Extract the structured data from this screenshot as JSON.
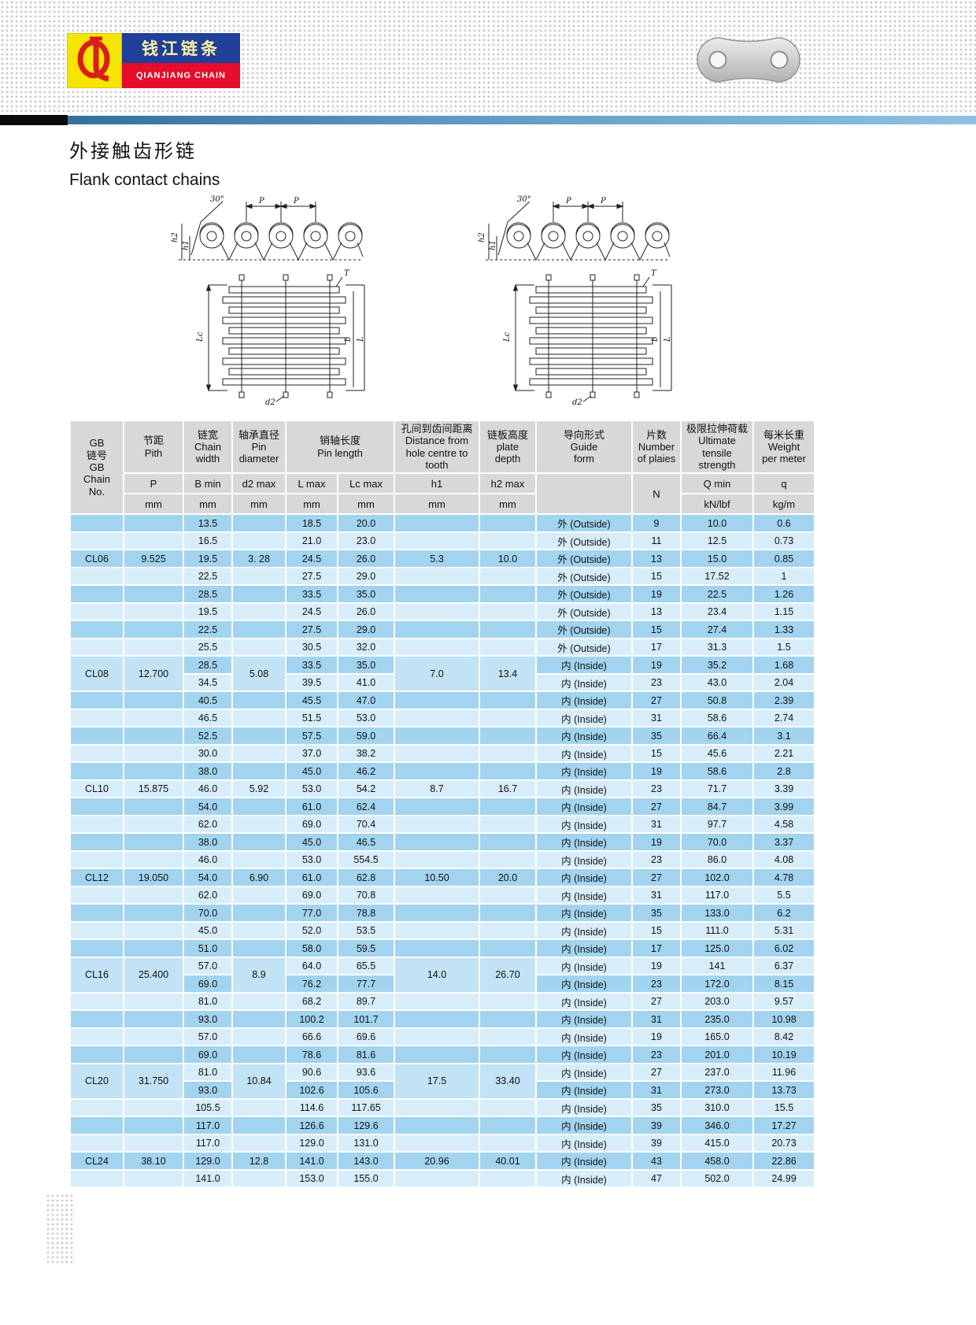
{
  "brand": {
    "monogram": "QL",
    "name_cn": "钱江链条",
    "name_en": "QIANJIANG CHAIN"
  },
  "page": {
    "title_cn": "外接触齿形链",
    "title_en": "Flank contact chains"
  },
  "diagram": {
    "p": "P",
    "angle": "30°",
    "h1": "h1",
    "h2": "h2",
    "lc": "Lc",
    "l": "L",
    "b": "b",
    "t": "T",
    "d2": "d2"
  },
  "table": {
    "head_top": [
      {
        "text": "GB\n链号\nGB\nChain\nNo.",
        "rowspan": 3
      },
      {
        "text": "节距\nPith"
      },
      {
        "text": "链宽\nChain\nwidth"
      },
      {
        "text": "轴承直径\nPin\ndiameter"
      },
      {
        "text": "销轴长度\nPin length",
        "colspan": 2
      },
      {
        "text": "孔间到齿间距离\nDistance from\nhole centre to\ntooth"
      },
      {
        "text": "链板高度\nplate\ndepth"
      },
      {
        "text": "导向形式\nGuide\nform"
      },
      {
        "text": "片数\nNumber\nof plaies"
      },
      {
        "text": "极限拉伸荷载\nUltimate\ntensile\nstrength"
      },
      {
        "text": "每米长重\nWeight\nper meter"
      }
    ],
    "head_sub": [
      {
        "text": "P"
      },
      {
        "text": "B min"
      },
      {
        "text": "d2 max"
      },
      {
        "text": "L max"
      },
      {
        "text": "Lc max"
      },
      {
        "text": "h1"
      },
      {
        "text": "h2 max"
      },
      {
        "text": "",
        "rowspan": 2
      },
      {
        "text": "N",
        "rowspan": 2
      },
      {
        "text": "Q min"
      },
      {
        "text": "q"
      }
    ],
    "head_units": [
      {
        "text": "mm"
      },
      {
        "text": "mm"
      },
      {
        "text": "mm"
      },
      {
        "text": "mm"
      },
      {
        "text": "mm"
      },
      {
        "text": "mm"
      },
      {
        "text": "mm"
      },
      {
        "text": "kN/lbf"
      },
      {
        "text": "kg/m"
      }
    ],
    "sections": [
      {
        "chain_no": "CL06",
        "pitch": "9.525",
        "d2_max": "3. 28",
        "h1": "5.3",
        "h2_max": "10.0",
        "label_row": 2,
        "label_span": 1,
        "rows": [
          {
            "w": "13.5",
            "l": "18.5",
            "lc": "20.0",
            "g": "外 (Outside)",
            "n": "9",
            "qm": "10.0",
            "q": "0.6"
          },
          {
            "w": "16.5",
            "l": "21.0",
            "lc": "23.0",
            "g": "外 (Outside)",
            "n": "11",
            "qm": "12.5",
            "q": "0.73"
          },
          {
            "w": "19.5",
            "l": "24.5",
            "lc": "26.0",
            "g": "外 (Outside)",
            "n": "13",
            "qm": "15.0",
            "q": "0.85"
          },
          {
            "w": "22.5",
            "l": "27.5",
            "lc": "29.0",
            "g": "外 (Outside)",
            "n": "15",
            "qm": "17.52",
            "q": "1"
          },
          {
            "w": "28.5",
            "l": "33.5",
            "lc": "35.0",
            "g": "外 (Outside)",
            "n": "19",
            "qm": "22.5",
            "q": "1.26"
          }
        ]
      },
      {
        "chain_no": "CL08",
        "pitch": "12.700",
        "d2_max": "5.08",
        "h1": "7.0",
        "h2_max": "13.4",
        "label_row": 3,
        "label_span": 2,
        "rows": [
          {
            "w": "19.5",
            "l": "24.5",
            "lc": "26.0",
            "g": "外 (Outside)",
            "n": "13",
            "qm": "23.4",
            "q": "1.15"
          },
          {
            "w": "22.5",
            "l": "27.5",
            "lc": "29.0",
            "g": "外 (Outside)",
            "n": "15",
            "qm": "27.4",
            "q": "1.33"
          },
          {
            "w": "25.5",
            "l": "30.5",
            "lc": "32.0",
            "g": "外 (Outside)",
            "n": "17",
            "qm": "31.3",
            "q": "1.5"
          },
          {
            "w": "28.5",
            "l": "33.5",
            "lc": "35.0",
            "g": "内 (Inside)",
            "n": "19",
            "qm": "35.2",
            "q": "1.68"
          },
          {
            "w": "34.5",
            "l": "39.5",
            "lc": "41.0",
            "g": "内 (Inside)",
            "n": "23",
            "qm": "43.0",
            "q": "2.04"
          },
          {
            "w": "40.5",
            "l": "45.5",
            "lc": "47.0",
            "g": "内 (Inside)",
            "n": "27",
            "qm": "50.8",
            "q": "2.39"
          },
          {
            "w": "46.5",
            "l": "51.5",
            "lc": "53.0",
            "g": "内 (Inside)",
            "n": "31",
            "qm": "58.6",
            "q": "2.74"
          },
          {
            "w": "52.5",
            "l": "57.5",
            "lc": "59.0",
            "g": "内 (Inside)",
            "n": "35",
            "qm": "66.4",
            "q": "3.1"
          }
        ]
      },
      {
        "chain_no": "CL10",
        "pitch": "15.875",
        "d2_max": "5.92",
        "h1": "8.7",
        "h2_max": "16.7",
        "label_row": 2,
        "label_span": 1,
        "rows": [
          {
            "w": "30.0",
            "l": "37.0",
            "lc": "38.2",
            "g": "内 (Inside)",
            "n": "15",
            "qm": "45.6",
            "q": "2.21"
          },
          {
            "w": "38.0",
            "l": "45.0",
            "lc": "46.2",
            "g": "内 (Inside)",
            "n": "19",
            "qm": "58.6",
            "q": "2.8"
          },
          {
            "w": "46.0",
            "l": "53.0",
            "lc": "54.2",
            "g": "内 (Inside)",
            "n": "23",
            "qm": "71.7",
            "q": "3.39"
          },
          {
            "w": "54.0",
            "l": "61.0",
            "lc": "62.4",
            "g": "内 (Inside)",
            "n": "27",
            "qm": "84.7",
            "q": "3.99"
          },
          {
            "w": "62.0",
            "l": "69.0",
            "lc": "70.4",
            "g": "内 (Inside)",
            "n": "31",
            "qm": "97.7",
            "q": "4.58"
          }
        ]
      },
      {
        "chain_no": "CL12",
        "pitch": "19.050",
        "d2_max": "6.90",
        "h1": "10.50",
        "h2_max": "20.0",
        "label_row": 2,
        "label_span": 1,
        "rows": [
          {
            "w": "38.0",
            "l": "45.0",
            "lc": "46.5",
            "g": "内 (Inside)",
            "n": "19",
            "qm": "70.0",
            "q": "3.37"
          },
          {
            "w": "46.0",
            "l": "53.0",
            "lc": "554.5",
            "g": "内 (Inside)",
            "n": "23",
            "qm": "86.0",
            "q": "4.08"
          },
          {
            "w": "54.0",
            "l": "61.0",
            "lc": "62.8",
            "g": "内 (Inside)",
            "n": "27",
            "qm": "102.0",
            "q": "4.78"
          },
          {
            "w": "62.0",
            "l": "69.0",
            "lc": "70.8",
            "g": "内 (Inside)",
            "n": "31",
            "qm": "117.0",
            "q": "5.5"
          },
          {
            "w": "70.0",
            "l": "77.0",
            "lc": "78.8",
            "g": "内 (Inside)",
            "n": "35",
            "qm": "133.0",
            "q": "6.2"
          }
        ]
      },
      {
        "chain_no": "CL16",
        "pitch": "25.400",
        "d2_max": "8.9",
        "h1": "14.0",
        "h2_max": "26.70",
        "label_row": 2,
        "label_span": 2,
        "rows": [
          {
            "w": "45.0",
            "l": "52.0",
            "lc": "53.5",
            "g": "内 (Inside)",
            "n": "15",
            "qm": "111.0",
            "q": "5.31"
          },
          {
            "w": "51.0",
            "l": "58.0",
            "lc": "59.5",
            "g": "内 (Inside)",
            "n": "17",
            "qm": "125.0",
            "q": "6.02"
          },
          {
            "w": "57.0",
            "l": "64.0",
            "lc": "65.5",
            "g": "内 (Inside)",
            "n": "19",
            "qm": "141",
            "q": "6.37"
          },
          {
            "w": "69.0",
            "l": "76.2",
            "lc": "77.7",
            "g": "内 (Inside)",
            "n": "23",
            "qm": "172.0",
            "q": "8.15"
          },
          {
            "w": "81.0",
            "l": "68.2",
            "lc": "89.7",
            "g": "内 (Inside)",
            "n": "27",
            "qm": "203.0",
            "q": "9.57"
          },
          {
            "w": "93.0",
            "l": "100.2",
            "lc": "101.7",
            "g": "内 (Inside)",
            "n": "31",
            "qm": "235.0",
            "q": "10.98"
          }
        ]
      },
      {
        "chain_no": "CL20",
        "pitch": "31.750",
        "d2_max": "10.84",
        "h1": "17.5",
        "h2_max": "33.40",
        "label_row": 2,
        "label_span": 2,
        "rows": [
          {
            "w": "57.0",
            "l": "66.6",
            "lc": "69.6",
            "g": "内 (Inside)",
            "n": "19",
            "qm": "165.0",
            "q": "8.42"
          },
          {
            "w": "69.0",
            "l": "78.6",
            "lc": "81.6",
            "g": "内 (Inside)",
            "n": "23",
            "qm": "201.0",
            "q": "10.19"
          },
          {
            "w": "81.0",
            "l": "90.6",
            "lc": "93.6",
            "g": "内 (Inside)",
            "n": "27",
            "qm": "237.0",
            "q": "11.96"
          },
          {
            "w": "93.0",
            "l": "102.6",
            "lc": "105.6",
            "g": "内 (Inside)",
            "n": "31",
            "qm": "273.0",
            "q": "13.73"
          },
          {
            "w": "105.5",
            "l": "114.6",
            "lc": "117.65",
            "g": "内 (Inside)",
            "n": "35",
            "qm": "310.0",
            "q": "15.5"
          },
          {
            "w": "117.0",
            "l": "126.6",
            "lc": "129.6",
            "g": "内 (Inside)",
            "n": "39",
            "qm": "346.0",
            "q": "17.27"
          }
        ]
      },
      {
        "chain_no": "CL24",
        "pitch": "38.10",
        "d2_max": "12.8",
        "h1": "20.96",
        "h2_max": "40.01",
        "label_row": 1,
        "label_span": 1,
        "rows": [
          {
            "w": "117.0",
            "l": "129.0",
            "lc": "131.0",
            "g": "内 (Inside)",
            "n": "39",
            "qm": "415.0",
            "q": "20.73"
          },
          {
            "w": "129.0",
            "l": "141.0",
            "lc": "143.0",
            "g": "内 (Inside)",
            "n": "43",
            "qm": "458.0",
            "q": "22.86"
          },
          {
            "w": "141.0",
            "l": "153.0",
            "lc": "155.0",
            "g": "内 (Inside)",
            "n": "47",
            "qm": "502.0",
            "q": "24.99"
          }
        ]
      }
    ]
  }
}
